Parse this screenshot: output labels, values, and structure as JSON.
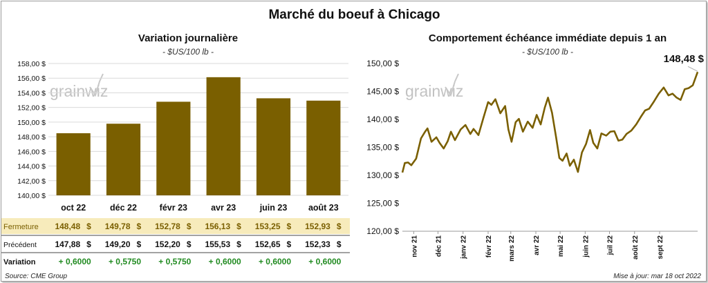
{
  "page": {
    "title": "Marché du boeuf à Chicago",
    "source": "Source: CME Group",
    "updated": "Mise à jour: mar 18 oct 2022",
    "watermark": "grainwiz"
  },
  "colors": {
    "bar": "#7a5f00",
    "line": "#7a5f00",
    "grid": "#d9d9d9",
    "fermeture_bg": "#f7ebbb",
    "fermeture_text": "#7a5f00",
    "positive": "#1f8a1f"
  },
  "chart_data": [
    {
      "type": "bar",
      "title": "Variation journalière",
      "ylabel": "- $US/100 lb -",
      "categories": [
        "oct 22",
        "déc 22",
        "févr 23",
        "avr 23",
        "juin 23",
        "août 23"
      ],
      "values": [
        148.48,
        149.78,
        152.78,
        156.13,
        153.25,
        152.93
      ],
      "ylim": [
        140,
        158
      ],
      "yticks": [
        "140,00 $",
        "142,00 $",
        "144,00 $",
        "146,00 $",
        "148,00 $",
        "150,00 $",
        "152,00 $",
        "154,00 $",
        "156,00 $",
        "158,00 $"
      ],
      "grid": true,
      "legend": "none"
    },
    {
      "type": "line",
      "title": "Comportement  échéance immédiate depuis 1 an",
      "ylabel": "- $US/100 lb -",
      "ylim": [
        120,
        150
      ],
      "yticks": [
        "120,00 $",
        "125,00 $",
        "130,00 $",
        "135,00 $",
        "140,00 $",
        "145,00 $",
        "150,00 $"
      ],
      "xlim": [
        "2021-10-18",
        "2022-10-18"
      ],
      "xticks": [
        {
          "date": "2021-11-01",
          "label": "nov 21"
        },
        {
          "date": "2021-12-01",
          "label": "déc 21"
        },
        {
          "date": "2022-01-01",
          "label": "janv 22"
        },
        {
          "date": "2022-02-01",
          "label": "févr 22"
        },
        {
          "date": "2022-03-01",
          "label": "mars 22"
        },
        {
          "date": "2022-04-01",
          "label": "avr 22"
        },
        {
          "date": "2022-05-01",
          "label": "mai 22"
        },
        {
          "date": "2022-06-01",
          "label": "juin 22"
        },
        {
          "date": "2022-07-01",
          "label": "juil 22"
        },
        {
          "date": "2022-08-01",
          "label": "août 22"
        },
        {
          "date": "2022-09-01",
          "label": "sept 22"
        }
      ],
      "last_label": "148,48 $",
      "grid": false,
      "legend": "none",
      "series": [
        {
          "x": [
            "2021-10-18",
            "2021-10-21",
            "2021-10-25",
            "2021-10-29",
            "2021-11-04",
            "2021-11-10",
            "2021-11-15",
            "2021-11-18",
            "2021-11-23",
            "2021-11-29",
            "2021-12-03",
            "2021-12-08",
            "2021-12-13",
            "2021-12-17",
            "2021-12-22",
            "2021-12-29",
            "2022-01-04",
            "2022-01-10",
            "2022-01-14",
            "2022-01-20",
            "2022-01-26",
            "2022-02-01",
            "2022-02-05",
            "2022-02-10",
            "2022-02-16",
            "2022-02-22",
            "2022-02-26",
            "2022-03-02",
            "2022-03-07",
            "2022-03-11",
            "2022-03-16",
            "2022-03-22",
            "2022-03-28",
            "2022-04-02",
            "2022-04-07",
            "2022-04-12",
            "2022-04-16",
            "2022-04-21",
            "2022-04-26",
            "2022-04-30",
            "2022-05-04",
            "2022-05-09",
            "2022-05-13",
            "2022-05-18",
            "2022-05-23",
            "2022-05-28",
            "2022-06-02",
            "2022-06-07",
            "2022-06-11",
            "2022-06-16",
            "2022-06-21",
            "2022-06-27",
            "2022-07-02",
            "2022-07-07",
            "2022-07-12",
            "2022-07-17",
            "2022-07-22",
            "2022-07-28",
            "2022-08-03",
            "2022-08-09",
            "2022-08-14",
            "2022-08-19",
            "2022-08-25",
            "2022-08-31",
            "2022-09-06",
            "2022-09-12",
            "2022-09-17",
            "2022-09-22",
            "2022-09-27",
            "2022-10-02",
            "2022-10-07",
            "2022-10-12",
            "2022-10-18"
          ],
          "y": [
            130.5,
            132.2,
            132.3,
            131.8,
            133.0,
            136.6,
            137.8,
            138.4,
            136.0,
            136.8,
            135.8,
            134.8,
            136.1,
            137.8,
            136.3,
            138.2,
            139.0,
            137.4,
            138.3,
            137.2,
            140.2,
            143.1,
            142.6,
            143.6,
            141.1,
            142.4,
            138.2,
            136.0,
            139.5,
            140.1,
            137.8,
            139.6,
            138.5,
            140.8,
            139.1,
            142.1,
            143.9,
            141.2,
            136.8,
            133.1,
            132.6,
            133.9,
            131.7,
            132.8,
            130.6,
            134.1,
            135.6,
            138.1,
            135.8,
            134.8,
            137.5,
            137.1,
            137.8,
            137.9,
            136.2,
            136.4,
            137.4,
            138.0,
            139.1,
            140.5,
            141.6,
            141.9,
            143.2,
            144.6,
            145.7,
            144.3,
            144.6,
            143.9,
            143.5,
            145.4,
            145.6,
            146.1,
            148.48
          ]
        }
      ]
    }
  ],
  "table": {
    "rows": [
      {
        "label": "Fermeture",
        "values": [
          "148,48",
          "149,78",
          "152,78",
          "156,13",
          "153,25",
          "152,93"
        ],
        "suffix": "$"
      },
      {
        "label": "Précédent",
        "values": [
          "147,88",
          "149,20",
          "152,20",
          "155,53",
          "152,65",
          "152,33"
        ],
        "suffix": "$"
      },
      {
        "label": "Variation",
        "values": [
          "+ 0,6000",
          "+ 0,5750",
          "+ 0,5750",
          "+ 0,6000",
          "+ 0,6000",
          "+ 0,6000"
        ],
        "suffix": ""
      }
    ]
  }
}
